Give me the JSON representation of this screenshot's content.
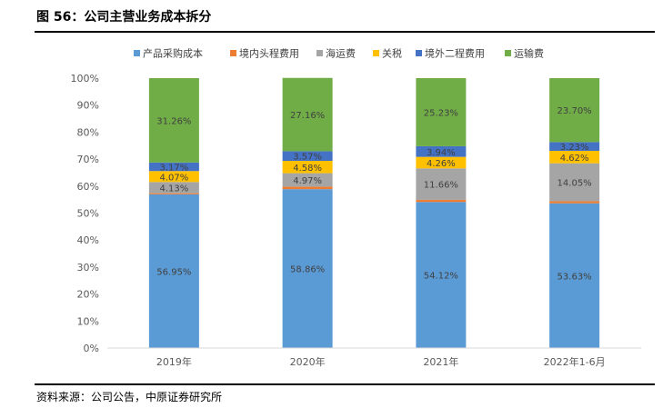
{
  "figure": {
    "title": "图 56：公司主营业务成本拆分",
    "source": "资料来源：公司公告，中原证券研究所"
  },
  "chart_data": {
    "type": "bar",
    "stacked": true,
    "categories": [
      "2019年",
      "2020年",
      "2021年",
      "2022年1-6月"
    ],
    "y_ticks": [
      "0%",
      "10%",
      "20%",
      "30%",
      "40%",
      "50%",
      "60%",
      "70%",
      "80%",
      "90%",
      "100%"
    ],
    "ylim": [
      0,
      100
    ],
    "legend_position": "top",
    "grid": false,
    "series": [
      {
        "name": "产品采购成本",
        "color": "#5B9BD5",
        "values": [
          56.95,
          58.86,
          54.12,
          53.63
        ],
        "labels": [
          "56.95%",
          "58.86%",
          "54.12%",
          "53.63%"
        ]
      },
      {
        "name": "境内头程费用",
        "color": "#ED7D31",
        "values": [
          0.42,
          0.95,
          0.79,
          0.77
        ],
        "labels": [
          "",
          "",
          "",
          ""
        ]
      },
      {
        "name": "海运费",
        "color": "#A5A5A5",
        "values": [
          4.13,
          4.97,
          11.66,
          14.05
        ],
        "labels": [
          "4.13%",
          "4.97%",
          "11.66%",
          "14.05%"
        ]
      },
      {
        "name": "关税",
        "color": "#FFC000",
        "values": [
          4.07,
          4.58,
          4.26,
          4.62
        ],
        "labels": [
          "4.07%",
          "4.58%",
          "4.26%",
          "4.62%"
        ]
      },
      {
        "name": "境外二程费用",
        "color": "#4472C4",
        "values": [
          3.17,
          3.57,
          3.94,
          3.23
        ],
        "labels": [
          "3.17%",
          "3.57%",
          "3.94%",
          "3.23%"
        ]
      },
      {
        "name": "运输费",
        "color": "#70AD47",
        "values": [
          31.26,
          27.16,
          25.23,
          23.7
        ],
        "labels": [
          "31.26%",
          "27.16%",
          "25.23%",
          "23.70%"
        ]
      }
    ]
  }
}
